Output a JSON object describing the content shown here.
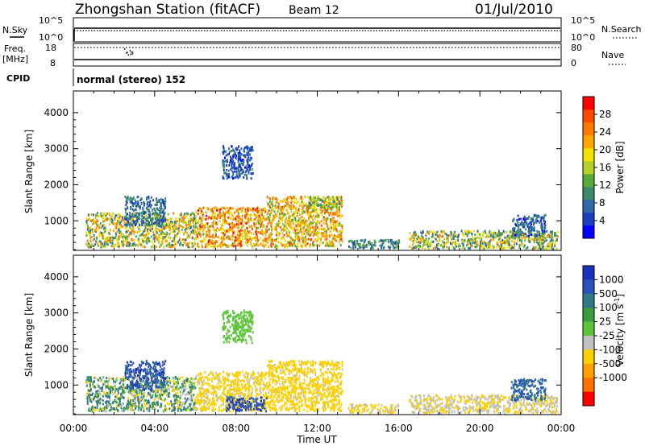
{
  "header": {
    "station": "Zhongshan Station (fitACF)",
    "beam": "Beam 12",
    "date": "01/Jul/2010"
  },
  "strips": {
    "nsky_label": "N.Sky",
    "nsky_ticks": [
      "10^5",
      "10^0"
    ],
    "nsearch_label": "N.Search",
    "nsearch_ticks": [
      "10^5",
      "10^0"
    ],
    "freq_label": "Freq.",
    "freq_unit": "[MHz]",
    "freq_ticks": [
      "18",
      "8"
    ],
    "nave_label": "Nave",
    "nave_ticks": [
      "80",
      "0"
    ],
    "cpid_label": "CPID",
    "cpid_value": "normal (stereo) 152"
  },
  "colors": {
    "power": [
      "#0000ff",
      "#1a3fbf",
      "#2e6aa8",
      "#3d8a6a",
      "#58aa3a",
      "#b8d02a",
      "#f5e100",
      "#ffa500",
      "#ff7a00",
      "#ff4a00",
      "#ff0000"
    ],
    "velocity": [
      "#1b2fbd",
      "#2a52b8",
      "#2f7a86",
      "#3e9a3e",
      "#5cc43a",
      "#c0c0c0",
      "#ffd000",
      "#ffa000",
      "#ff7000",
      "#ff0000"
    ]
  },
  "chart_data": [
    {
      "type": "heatmap",
      "quantity": "power",
      "ylabel": "Slant Range [km]",
      "ylim": [
        180,
        4600
      ],
      "yticks": [
        "1000",
        "2000",
        "3000",
        "4000"
      ],
      "colorbar_label": "Power [dB]",
      "colorbar_ticks": [
        "4",
        "8",
        "12",
        "16",
        "20",
        "24",
        "28"
      ],
      "clim": [
        0,
        32
      ],
      "regions": [
        {
          "t": [
            0.6,
            6.0
          ],
          "r": [
            300,
            1250
          ],
          "v": [
            6,
            26
          ]
        },
        {
          "t": [
            2.5,
            4.5
          ],
          "r": [
            900,
            1700
          ],
          "v": [
            4,
            12
          ]
        },
        {
          "t": [
            6.0,
            9.5
          ],
          "r": [
            300,
            1400
          ],
          "v": [
            14,
            30
          ]
        },
        {
          "t": [
            7.3,
            8.8
          ],
          "r": [
            2200,
            3100
          ],
          "v": [
            2,
            10
          ]
        },
        {
          "t": [
            9.5,
            13.2
          ],
          "r": [
            300,
            1700
          ],
          "v": [
            12,
            28
          ]
        },
        {
          "t": [
            11.5,
            13.2
          ],
          "r": [
            1400,
            1700
          ],
          "v": [
            8,
            20
          ]
        },
        {
          "t": [
            13.5,
            16.0
          ],
          "r": [
            250,
            500
          ],
          "v": [
            4,
            14
          ]
        },
        {
          "t": [
            16.5,
            23.8
          ],
          "r": [
            250,
            750
          ],
          "v": [
            6,
            24
          ]
        },
        {
          "t": [
            21.5,
            23.2
          ],
          "r": [
            600,
            1200
          ],
          "v": [
            2,
            12
          ]
        }
      ]
    },
    {
      "type": "heatmap",
      "quantity": "velocity",
      "xlabel": "Time UT",
      "xticks": [
        "00:00",
        "04:00",
        "08:00",
        "12:00",
        "16:00",
        "20:00",
        "00:00"
      ],
      "xlim": [
        0,
        24
      ],
      "ylabel": "Slant Range [km]",
      "ylim": [
        180,
        4600
      ],
      "yticks": [
        "1000",
        "2000",
        "3000",
        "4000"
      ],
      "colorbar_label": "Velocity [m s^-1]",
      "colorbar_ticks": [
        "1000",
        "500",
        "100",
        "25",
        "-25",
        "-100",
        "-500",
        "-1000"
      ],
      "regions": [
        {
          "t": [
            0.6,
            6.0
          ],
          "r": [
            300,
            1250
          ],
          "v": [
            -200,
            300
          ]
        },
        {
          "t": [
            2.5,
            4.5
          ],
          "r": [
            900,
            1700
          ],
          "v": [
            300,
            1200
          ]
        },
        {
          "t": [
            6.0,
            9.5
          ],
          "r": [
            300,
            1400
          ],
          "v": [
            -300,
            -60
          ]
        },
        {
          "t": [
            7.3,
            8.8
          ],
          "r": [
            2200,
            3100
          ],
          "v": [
            -20,
            20
          ]
        },
        {
          "t": [
            9.5,
            13.2
          ],
          "r": [
            300,
            1700
          ],
          "v": [
            -300,
            -80
          ]
        },
        {
          "t": [
            7.5,
            9.5
          ],
          "r": [
            300,
            700
          ],
          "v": [
            400,
            1200
          ]
        },
        {
          "t": [
            13.5,
            16.0
          ],
          "r": [
            250,
            500
          ],
          "v": [
            -200,
            -60
          ]
        },
        {
          "t": [
            16.5,
            23.8
          ],
          "r": [
            250,
            750
          ],
          "v": [
            -150,
            -40
          ]
        },
        {
          "t": [
            21.5,
            23.2
          ],
          "r": [
            600,
            1200
          ],
          "v": [
            100,
            900
          ]
        }
      ]
    }
  ]
}
